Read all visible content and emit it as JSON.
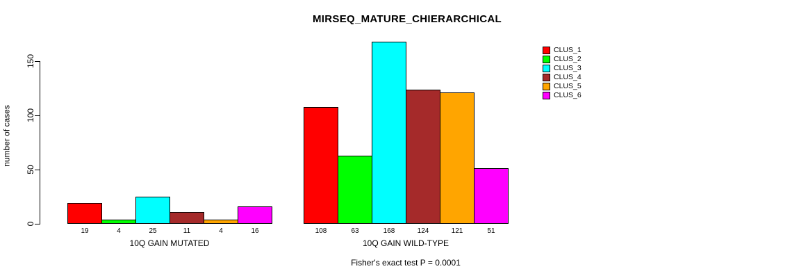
{
  "title": "MIRSEQ_MATURE_CHIERARCHICAL",
  "chart_data": {
    "type": "bar",
    "title": "MIRSEQ_MATURE_CHIERARCHICAL",
    "xlabel": "",
    "ylabel": "number of cases",
    "ylim": [
      0,
      150
    ],
    "yticks": [
      0,
      50,
      100,
      150
    ],
    "grid": false,
    "legend_position": "right-outside",
    "categories": [
      "10Q GAIN MUTATED",
      "10Q GAIN WILD-TYPE"
    ],
    "series": [
      {
        "name": "CLUS_1",
        "color": "#FF0000",
        "values": [
          19,
          108
        ]
      },
      {
        "name": "CLUS_2",
        "color": "#00FF00",
        "values": [
          4,
          63
        ]
      },
      {
        "name": "CLUS_3",
        "color": "#00FFFF",
        "values": [
          25,
          168
        ]
      },
      {
        "name": "CLUS_4",
        "color": "#A52A2A",
        "values": [
          11,
          124
        ]
      },
      {
        "name": "CLUS_5",
        "color": "#FFA500",
        "values": [
          4,
          121
        ]
      },
      {
        "name": "CLUS_6",
        "color": "#FF00FF",
        "values": [
          16,
          51
        ]
      }
    ],
    "bar_value_labels_shown": true,
    "annotation": "Fisher's exact test P = 0.0001"
  }
}
